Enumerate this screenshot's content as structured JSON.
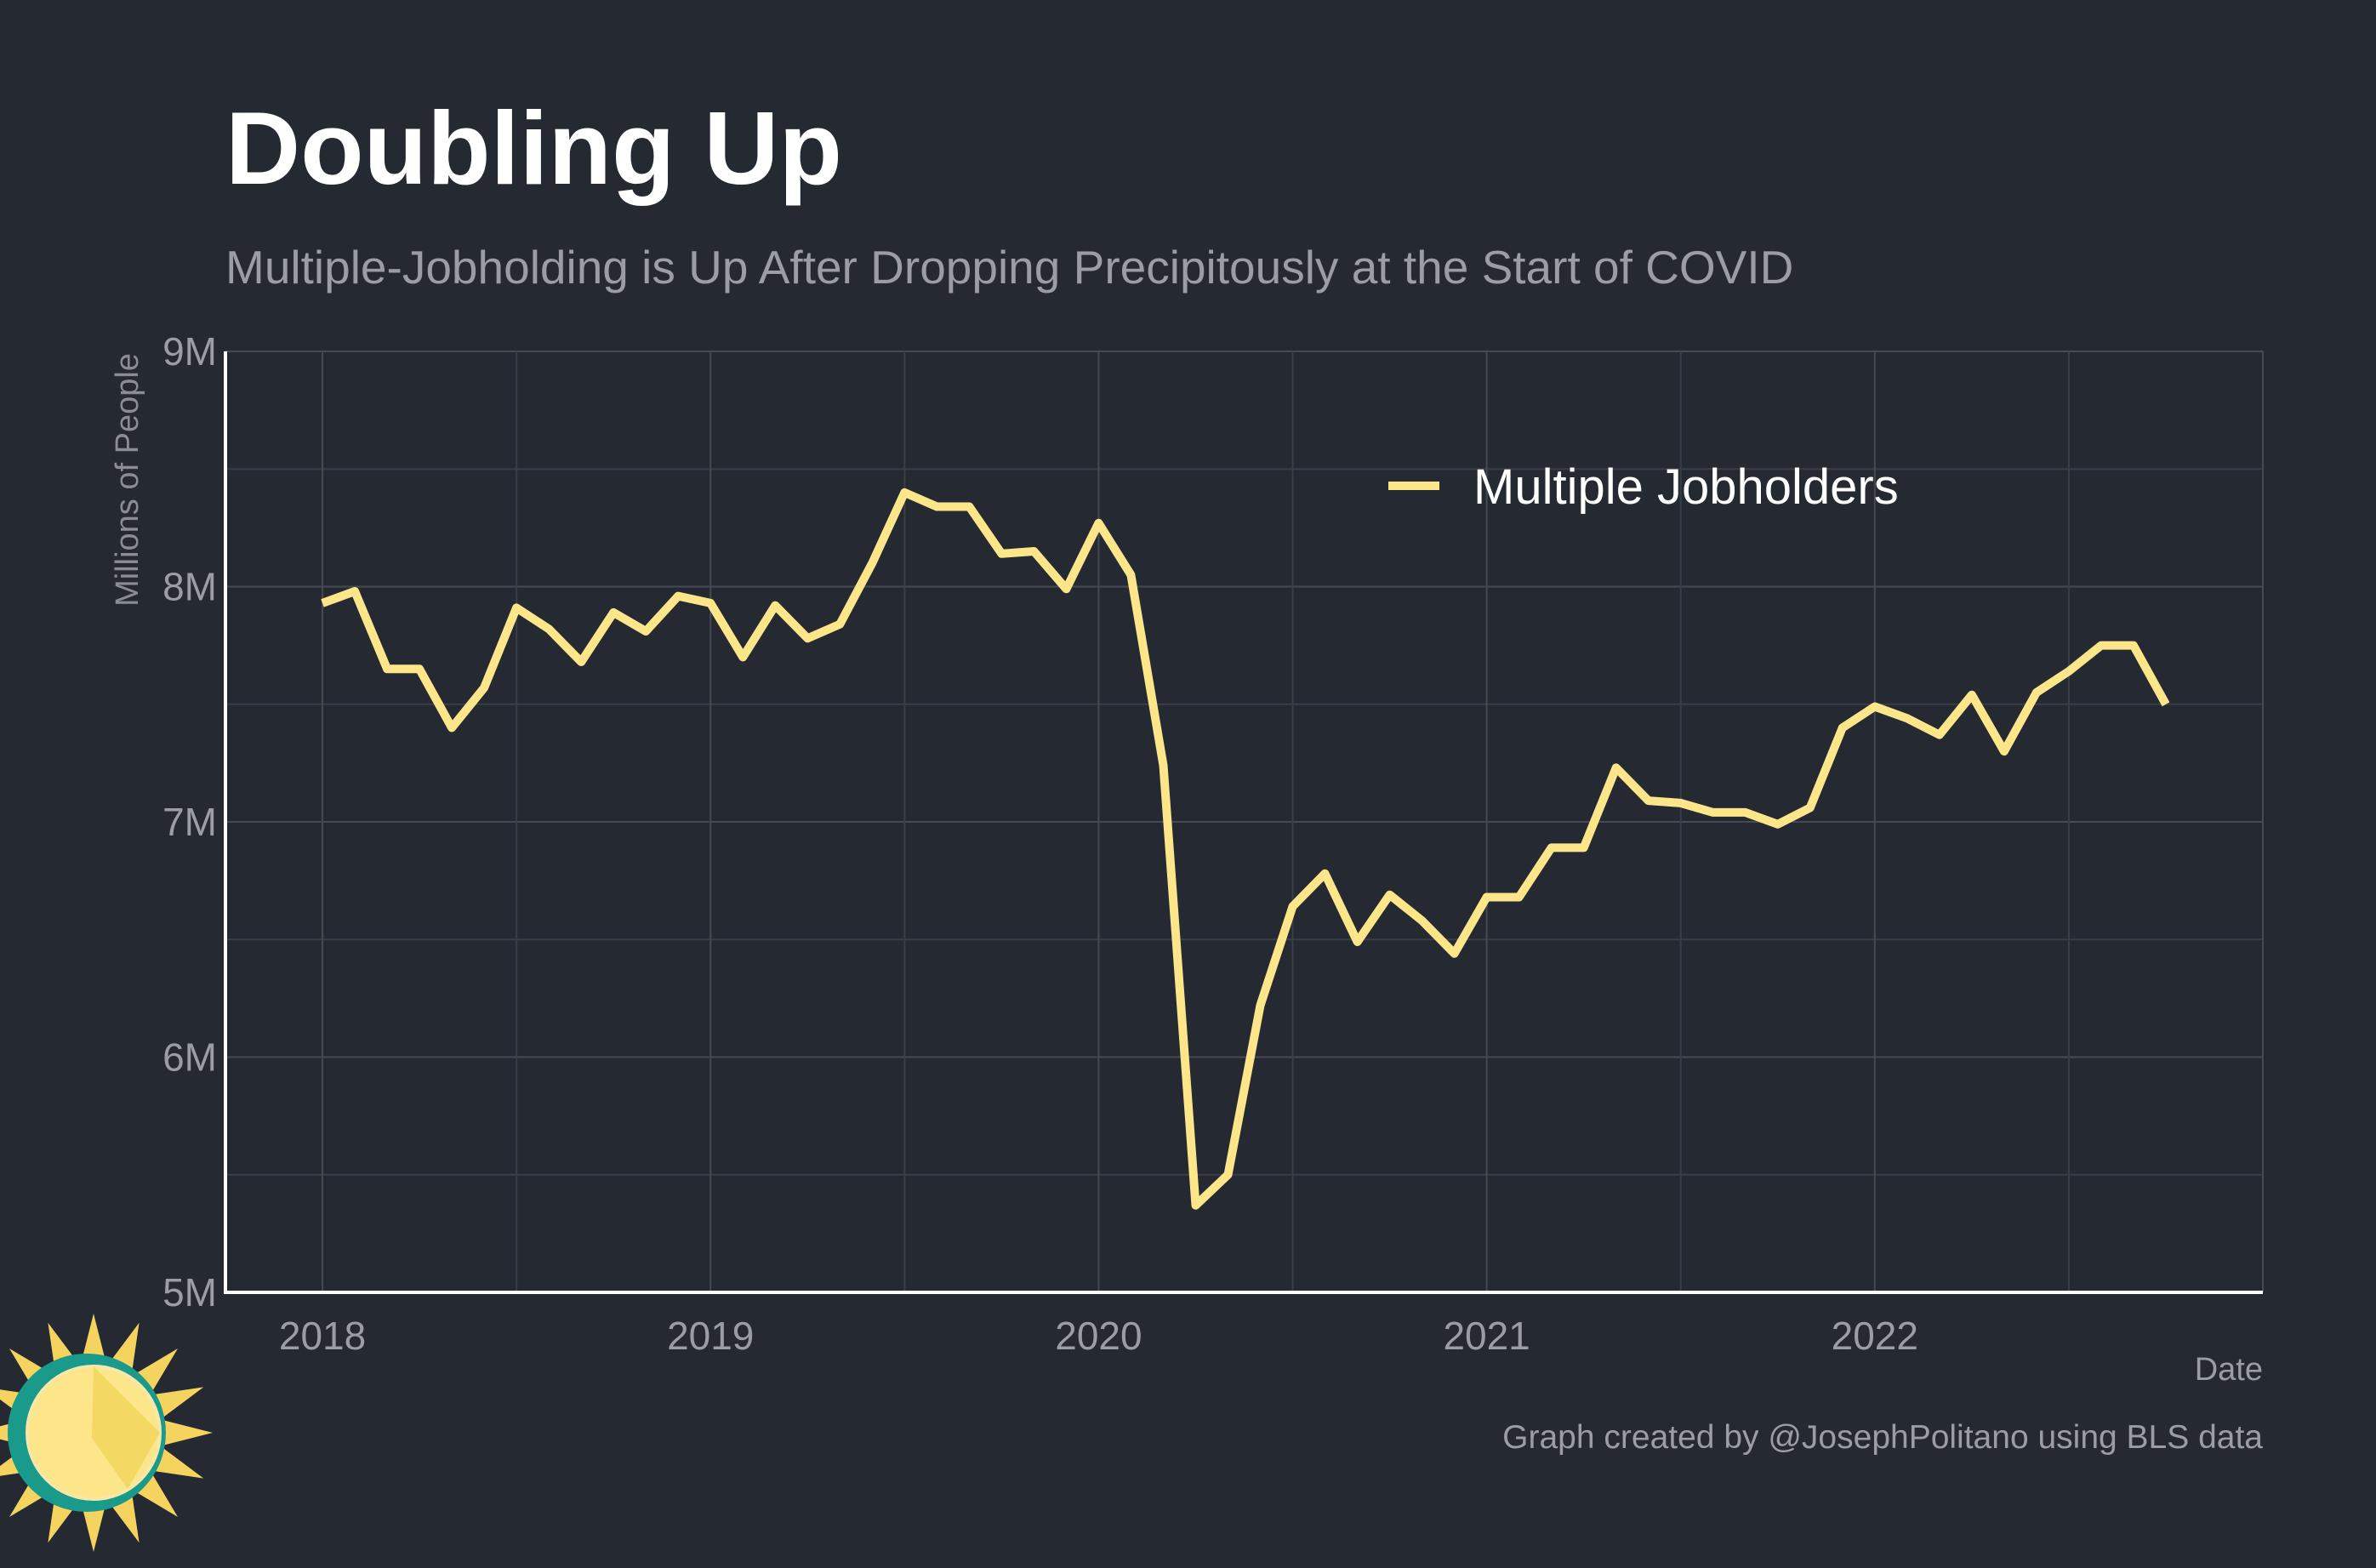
{
  "chart_data": {
    "type": "line",
    "title": "Doubling Up",
    "subtitle": "Multiple-Jobholding is Up After Dropping Precipitously at the Start of COVID",
    "xlabel": "Date",
    "ylabel": "Millions of People",
    "caption": "Graph created by @JosephPolitano using BLS data",
    "ylim": [
      5,
      9
    ],
    "y_ticks": [
      "5M",
      "6M",
      "7M",
      "8M",
      "9M"
    ],
    "x_ticks": [
      "2018",
      "2019",
      "2020",
      "2021",
      "2022"
    ],
    "xlim": [
      "2017-10",
      "2023-01"
    ],
    "grid": true,
    "legend": "top-right",
    "series": [
      {
        "name": "Multiple Jobholders",
        "color": "#fde68a",
        "x": [
          "2018-01",
          "2018-02",
          "2018-03",
          "2018-04",
          "2018-05",
          "2018-06",
          "2018-07",
          "2018-08",
          "2018-09",
          "2018-10",
          "2018-11",
          "2018-12",
          "2019-01",
          "2019-02",
          "2019-03",
          "2019-04",
          "2019-05",
          "2019-06",
          "2019-07",
          "2019-08",
          "2019-09",
          "2019-10",
          "2019-11",
          "2019-12",
          "2020-01",
          "2020-02",
          "2020-03",
          "2020-04",
          "2020-05",
          "2020-06",
          "2020-07",
          "2020-08",
          "2020-09",
          "2020-10",
          "2020-11",
          "2020-12",
          "2021-01",
          "2021-02",
          "2021-03",
          "2021-04",
          "2021-05",
          "2021-06",
          "2021-07",
          "2021-08",
          "2021-09",
          "2021-10",
          "2021-11",
          "2021-12",
          "2022-01",
          "2022-02",
          "2022-03",
          "2022-04",
          "2022-05",
          "2022-06",
          "2022-07",
          "2022-08",
          "2022-09",
          "2022-10"
        ],
        "values": [
          7.93,
          7.98,
          7.65,
          7.65,
          7.4,
          7.57,
          7.91,
          7.82,
          7.68,
          7.89,
          7.81,
          7.96,
          7.93,
          7.7,
          7.92,
          7.78,
          7.84,
          8.1,
          8.4,
          8.34,
          8.34,
          8.14,
          8.15,
          7.99,
          8.27,
          8.05,
          7.24,
          5.37,
          5.5,
          6.22,
          6.64,
          6.78,
          6.49,
          6.69,
          6.58,
          6.44,
          6.68,
          6.68,
          6.89,
          6.89,
          7.23,
          7.09,
          7.08,
          7.04,
          7.04,
          6.99,
          7.06,
          7.4,
          7.49,
          7.44,
          7.37,
          7.54,
          7.3,
          7.55,
          7.64,
          7.75,
          7.75,
          7.5
        ]
      }
    ]
  },
  "logo": {
    "name": "sun-logo",
    "colors": [
      "#f4d35e",
      "#fde68a",
      "#1a9a8a"
    ]
  }
}
